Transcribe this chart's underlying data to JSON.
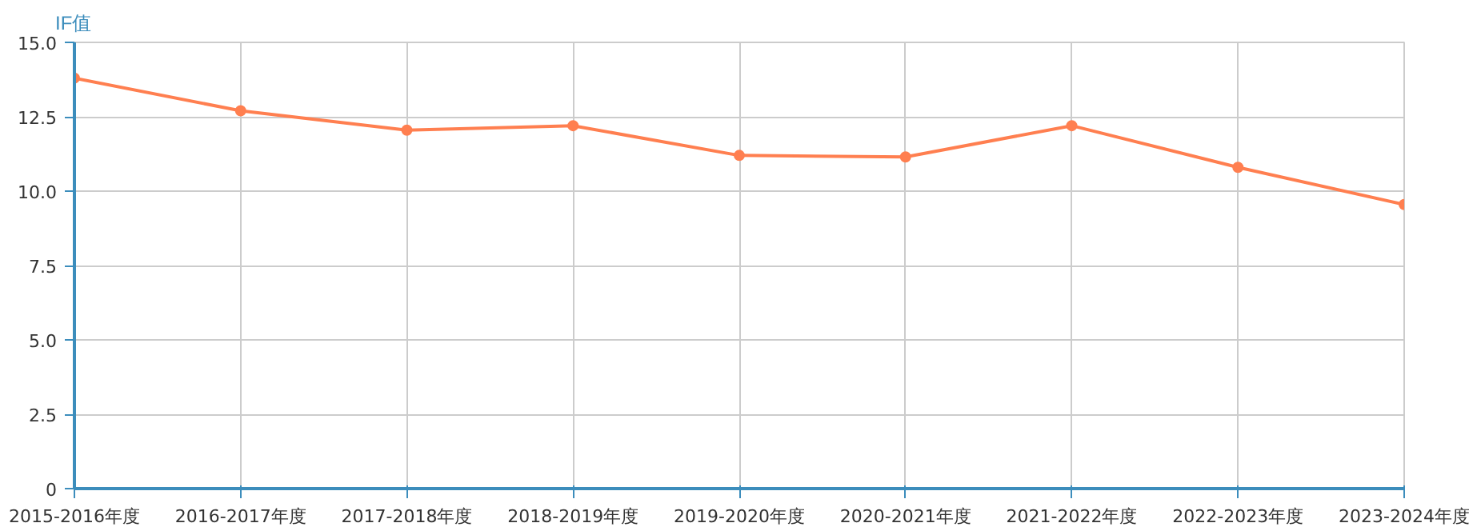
{
  "chart_data": {
    "type": "line",
    "ylabel": "IF值",
    "categories": [
      "2015-2016年度",
      "2016-2017年度",
      "2017-2018年度",
      "2018-2019年度",
      "2019-2020年度",
      "2020-2021年度",
      "2021-2022年度",
      "2022-2023年度",
      "2023-2024年度"
    ],
    "series": [
      {
        "color": "#ff7f50",
        "values": [
          13.8,
          12.7,
          12.05,
          12.2,
          11.2,
          11.15,
          12.2,
          10.8,
          9.55
        ]
      }
    ],
    "ylim": [
      0,
      15
    ],
    "yticks": [
      0,
      2.5,
      {
        "value": 5,
        "label": "5.0"
      },
      7.5,
      {
        "value": 10,
        "label": "10.0"
      },
      12.5,
      {
        "value": 15,
        "label": "15.0"
      }
    ],
    "grid": true,
    "marker": "circle",
    "line_style": "solid"
  }
}
